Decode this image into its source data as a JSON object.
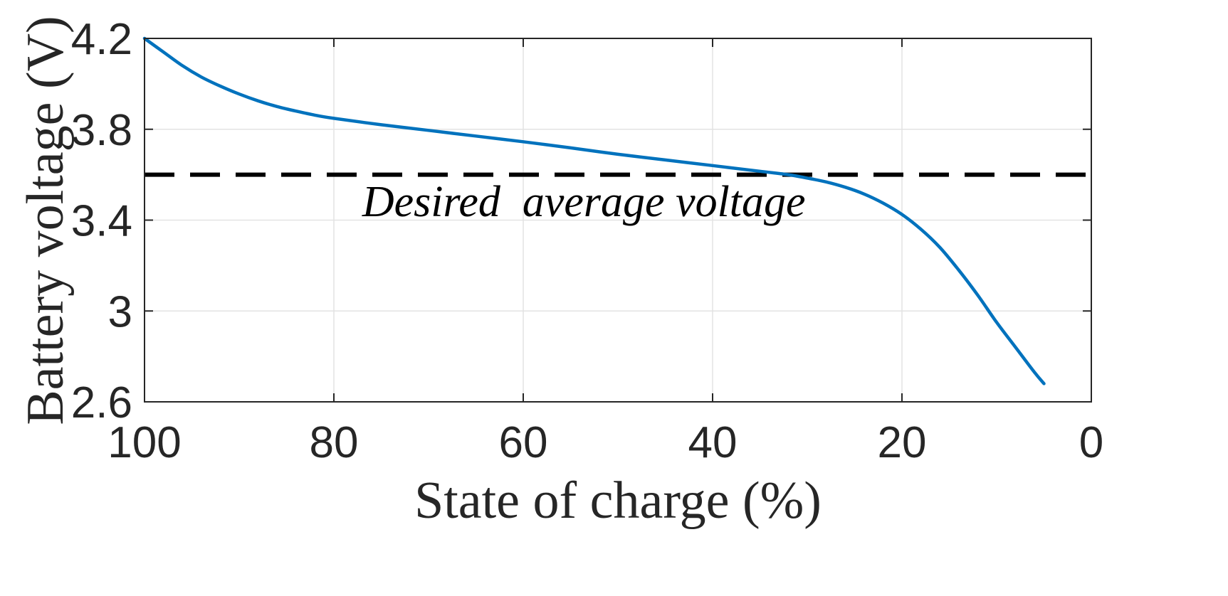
{
  "chart_data": {
    "type": "line",
    "title": "",
    "xlabel": "State of charge (%)",
    "ylabel": "Battery voltage (V)",
    "xlim": [
      100,
      0
    ],
    "ylim": [
      2.6,
      4.2
    ],
    "x_reversed": true,
    "grid": true,
    "xticks": [
      100,
      80,
      60,
      40,
      20,
      0
    ],
    "xtick_labels": [
      "100",
      "80",
      "60",
      "40",
      "20",
      "0"
    ],
    "yticks": [
      2.6,
      3.0,
      3.4,
      3.8,
      4.2
    ],
    "ytick_labels": [
      "2.6",
      "3",
      "3.4",
      "3.8",
      "4.2"
    ],
    "series": [
      {
        "name": "Battery voltage",
        "color": "#0072BD",
        "x": [
          100,
          98,
          96,
          94,
          92,
          90,
          88,
          86,
          84,
          82,
          80,
          75,
          70,
          65,
          60,
          55,
          50,
          45,
          40,
          35,
          32,
          30,
          28,
          26,
          24,
          22,
          20,
          18,
          16,
          14,
          12,
          10,
          8,
          6,
          5
        ],
        "y": [
          4.2,
          4.14,
          4.08,
          4.03,
          3.99,
          3.955,
          3.925,
          3.9,
          3.88,
          3.862,
          3.848,
          3.82,
          3.795,
          3.77,
          3.745,
          3.718,
          3.69,
          3.665,
          3.64,
          3.615,
          3.6,
          3.585,
          3.568,
          3.545,
          3.515,
          3.475,
          3.425,
          3.36,
          3.28,
          3.18,
          3.07,
          2.95,
          2.84,
          2.73,
          2.68
        ]
      }
    ],
    "reference_lines": [
      {
        "name": "Desired average voltage",
        "y": 3.6,
        "style": "dashed",
        "color": "#000000"
      }
    ],
    "annotations": [
      {
        "text": "Desired  average voltage",
        "x": 77,
        "y": 3.48
      }
    ]
  }
}
